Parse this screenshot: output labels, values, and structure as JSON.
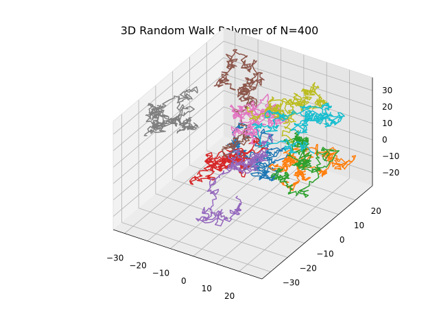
{
  "chart_data": {
    "type": "line",
    "projection": "3d",
    "title": "3D Random Walk Polymer of N=400",
    "xlabel": "",
    "ylabel": "",
    "zlabel": "",
    "xlim": [
      -35,
      30
    ],
    "ylim": [
      -35,
      30
    ],
    "zlim": [
      -28,
      38
    ],
    "x_ticks": [
      "−30",
      "−20",
      "−10",
      "0",
      "10",
      "20"
    ],
    "y_ticks": [
      "−30",
      "−20",
      "−10",
      "0",
      "10",
      "20"
    ],
    "z_ticks": [
      "−20",
      "−10",
      "0",
      "10",
      "20",
      "30"
    ],
    "grid": true,
    "legend": "none",
    "steps_per_walk": 400,
    "series": [
      {
        "color": "#1f77b4",
        "start": [
          8,
          2,
          2
        ]
      },
      {
        "color": "#ff7f0e",
        "start": [
          10,
          4,
          -2
        ]
      },
      {
        "color": "#2ca02c",
        "start": [
          15,
          0,
          -6
        ]
      },
      {
        "color": "#d62728",
        "start": [
          -5,
          -10,
          5
        ]
      },
      {
        "color": "#9467bd",
        "start": [
          5,
          5,
          8
        ]
      },
      {
        "color": "#8c564b",
        "start": [
          -8,
          0,
          10
        ]
      },
      {
        "color": "#e377c2",
        "start": [
          0,
          0,
          12
        ]
      },
      {
        "color": "#7f7f7f",
        "start": [
          -20,
          -5,
          15
        ]
      },
      {
        "color": "#bcbd22",
        "start": [
          -5,
          5,
          25
        ]
      },
      {
        "color": "#17becf",
        "start": [
          18,
          12,
          2
        ]
      }
    ]
  }
}
